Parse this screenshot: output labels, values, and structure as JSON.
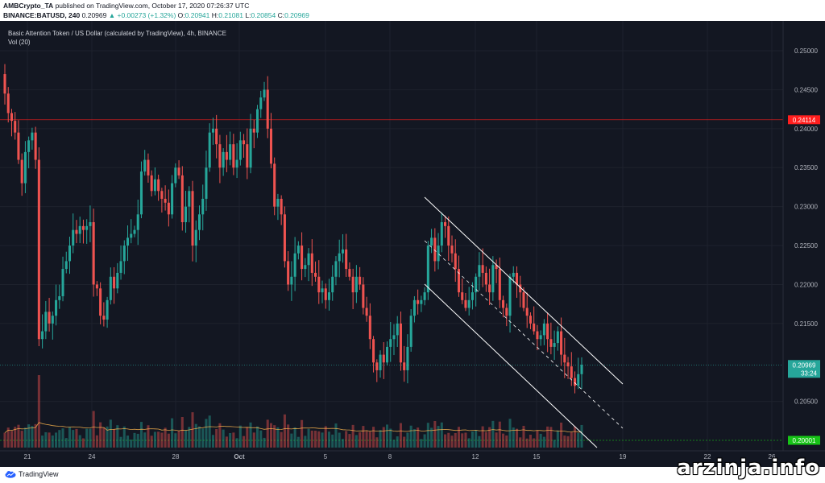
{
  "header": {
    "publisher": "AMBCrypto_TA",
    "published_text": "published on TradingView.com, October 17, 2020 07:26:37 UTC",
    "symbol": "BINANCE:BATUSD, 240",
    "last_price": "0.20969",
    "change": "▲ +0.00273 (+1.32%)",
    "ohlc": [
      {
        "label": "O:",
        "value": "0.20941"
      },
      {
        "label": "H:",
        "value": "0.21081"
      },
      {
        "label": "L:",
        "value": "0.20854"
      },
      {
        "label": "C:",
        "value": "0.20969"
      }
    ]
  },
  "legend": {
    "series_title": "Basic Attention Token / US Dollar (calculated by TradingView), 4h, BINANCE",
    "volume_label": "Vol (20)"
  },
  "footer": {
    "brand": "TradingView",
    "watermark": "arzinja.info"
  },
  "chart_data": {
    "type": "candlestick",
    "title": "Basic Attention Token / US Dollar (calculated by TradingView), 4h, BINANCE",
    "interval": "4h",
    "y_ticks": [
      "0.25000",
      "0.24500",
      "0.24000",
      "0.23500",
      "0.23000",
      "0.22500",
      "0.22000",
      "0.21500",
      "0.20500"
    ],
    "ylim": [
      0.1985,
      0.2565
    ],
    "x_ticks": [
      "21",
      "24",
      "28",
      "Oct",
      "5",
      "8",
      "12",
      "15",
      "19",
      "22",
      "26"
    ],
    "price_lines": [
      {
        "value": 0.24114,
        "label": "0.24114",
        "color": "#ff1e1e"
      },
      {
        "value": 0.20001,
        "label": "0.20001",
        "color": "#17c317"
      }
    ],
    "last_price": {
      "value": 0.20969,
      "label": "0.20969",
      "countdown": "33:24",
      "color": "#26a69a"
    },
    "volume_ma_period": 20,
    "up_color": "#26a69a",
    "down_color": "#ef5350",
    "closes": [
      0.2445,
      0.242,
      0.241,
      0.2395,
      0.236,
      0.233,
      0.237,
      0.2385,
      0.2395,
      0.236,
      0.213,
      0.214,
      0.2165,
      0.215,
      0.216,
      0.218,
      0.2185,
      0.222,
      0.223,
      0.225,
      0.227,
      0.2265,
      0.2275,
      0.227,
      0.2275,
      0.228,
      0.22,
      0.2195,
      0.216,
      0.2155,
      0.218,
      0.221,
      0.2195,
      0.2215,
      0.223,
      0.225,
      0.226,
      0.2265,
      0.227,
      0.229,
      0.2345,
      0.236,
      0.234,
      0.232,
      0.2335,
      0.232,
      0.231,
      0.2305,
      0.229,
      0.233,
      0.235,
      0.234,
      0.228,
      0.23,
      0.232,
      0.225,
      0.227,
      0.229,
      0.231,
      0.235,
      0.2395,
      0.24,
      0.238,
      0.235,
      0.237,
      0.236,
      0.238,
      0.235,
      0.236,
      0.2385,
      0.238,
      0.235,
      0.24,
      0.2395,
      0.2425,
      0.244,
      0.245,
      0.24,
      0.2355,
      0.23,
      0.231,
      0.229,
      0.223,
      0.22,
      0.221,
      0.224,
      0.225,
      0.222,
      0.2225,
      0.224,
      0.2215,
      0.221,
      0.219,
      0.2195,
      0.218,
      0.219,
      0.221,
      0.223,
      0.224,
      0.2245,
      0.222,
      0.221,
      0.219,
      0.221,
      0.22,
      0.217,
      0.216,
      0.213,
      0.21,
      0.209,
      0.211,
      0.21,
      0.212,
      0.213,
      0.2135,
      0.215,
      0.21,
      0.209,
      0.212,
      0.216,
      0.218,
      0.2175,
      0.218,
      0.219,
      0.225,
      0.226,
      0.223,
      0.225,
      0.228,
      0.2275,
      0.225,
      0.224,
      0.222,
      0.219,
      0.218,
      0.217,
      0.218,
      0.219,
      0.221,
      0.2225,
      0.2215,
      0.22,
      0.219,
      0.2225,
      0.222,
      0.218,
      0.217,
      0.216,
      0.221,
      0.2215,
      0.22,
      0.219,
      0.217,
      0.216,
      0.215,
      0.214,
      0.213,
      0.2135,
      0.215,
      0.213,
      0.212,
      0.2125,
      0.214,
      0.211,
      0.21,
      0.2095,
      0.208,
      0.207,
      0.2085,
      0.2097
    ]
  }
}
